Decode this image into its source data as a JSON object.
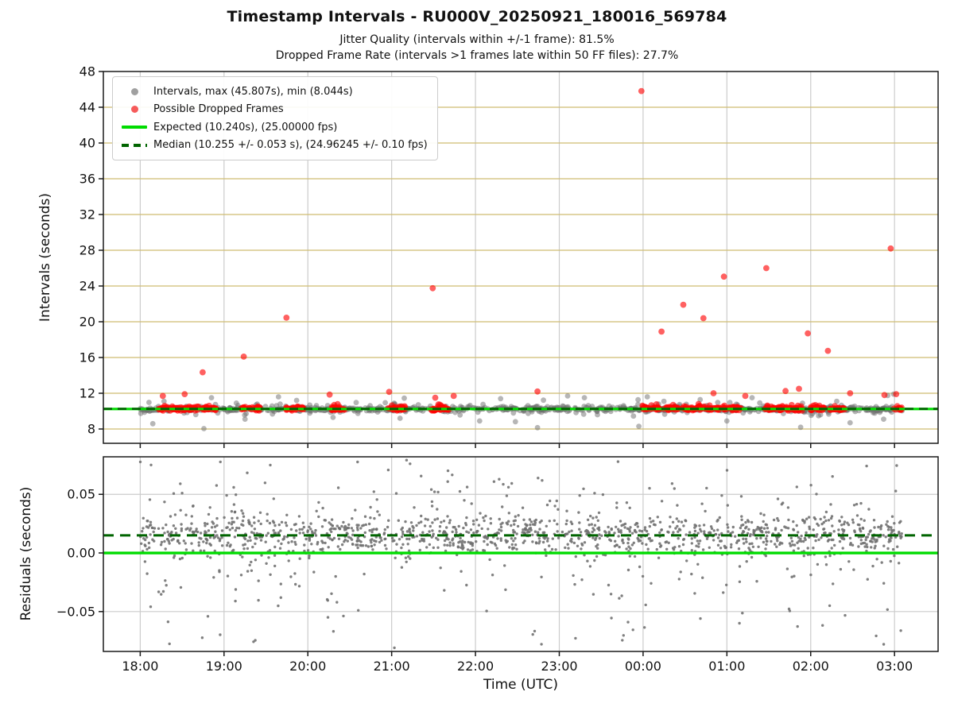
{
  "title": "Timestamp Intervals - RU000V_20250921_180016_569784",
  "subtitle1": "Jitter Quality (intervals within +/-1 frame): 81.5%",
  "subtitle2": "Dropped Frame Rate (intervals >1 frames late within 50 FF files): 27.7%",
  "stats": {
    "jitter_quality_pct": "81.5%",
    "dropped_frame_rate_pct": "27.7%",
    "ff_files": 50,
    "max_interval_s": 45.807,
    "min_interval_s": 8.044,
    "expected_interval_s": 10.24,
    "expected_fps": "25.00000",
    "median_interval_s": 10.255,
    "median_interval_err_s": 0.053,
    "median_fps": "24.96245",
    "median_fps_err": "0.10"
  },
  "legend": {
    "items": [
      {
        "label": "Intervals, max (45.807s), min (8.044s)",
        "marker": "gray-dot"
      },
      {
        "label": "Possible Dropped Frames",
        "marker": "red-dot"
      },
      {
        "label": "Expected (10.240s), (25.00000 fps)",
        "marker": "solid-line"
      },
      {
        "label": "Median (10.255 +/- 0.053 s), (24.96245 +/- 0.10 fps)",
        "marker": "dashed-line"
      }
    ]
  },
  "colors": {
    "gray_marker": "rgba(110,110,110,0.5)",
    "red_marker": "rgba(255,0,0,0.62)",
    "residual_marker": "rgba(110,110,110,0.88)",
    "expected_line": "#00dc00",
    "median_line": "#006400",
    "grid_tan": "#cfbc72",
    "grid_gray": "#cccccc",
    "frame": "#1a1a1a",
    "tick_text": "#111111"
  },
  "chart_data": {
    "type": "scatter",
    "x": {
      "label": "Time (UTC)",
      "xlim": [
        17.56,
        27.52
      ],
      "tick_hours": [
        18,
        19,
        20,
        21,
        22,
        23,
        24,
        25,
        26,
        27
      ],
      "tick_labels": [
        "18:00",
        "19:00",
        "20:00",
        "21:00",
        "22:00",
        "23:00",
        "00:00",
        "01:00",
        "02:00",
        "03:00"
      ],
      "data_range": [
        18.0,
        27.09
      ]
    },
    "panels": [
      {
        "name": "intervals",
        "ylabel": "Intervals (seconds)",
        "ylim": [
          6.4,
          48.0
        ],
        "ytick_values": [
          8,
          12,
          16,
          20,
          24,
          28,
          32,
          36,
          40,
          44,
          48
        ],
        "ytick_labels": [
          "8",
          "12",
          "16",
          "20",
          "24",
          "28",
          "32",
          "36",
          "40",
          "44",
          "48"
        ],
        "grid_values": [
          8,
          12,
          16,
          20,
          24,
          28,
          32,
          36,
          40,
          44
        ],
        "expected_line_y": 10.24,
        "median_line_y": 10.255,
        "gray_band": {
          "t_range": [
            18.0,
            27.09
          ],
          "center": 10.25,
          "count": 950
        },
        "gray_stray_points": [
          [
            18.76,
            8.044
          ],
          [
            18.15,
            8.6
          ],
          [
            19.25,
            9.1
          ],
          [
            20.3,
            9.3
          ],
          [
            21.1,
            9.2
          ],
          [
            22.05,
            8.9
          ],
          [
            22.74,
            8.15
          ],
          [
            23.95,
            8.3
          ],
          [
            25.0,
            8.9
          ],
          [
            25.88,
            8.2
          ],
          [
            26.47,
            8.7
          ],
          [
            26.87,
            9.1
          ],
          [
            18.85,
            11.5
          ],
          [
            19.65,
            11.6
          ],
          [
            21.15,
            11.45
          ],
          [
            22.3,
            11.4
          ],
          [
            23.1,
            11.7
          ],
          [
            23.3,
            11.5
          ],
          [
            24.05,
            11.6
          ],
          [
            25.3,
            11.5
          ],
          [
            26.92,
            11.75
          ],
          [
            26.99,
            11.9
          ]
        ],
        "red_outliers": [
          [
            23.98,
            45.81
          ],
          [
            18.745,
            14.35
          ],
          [
            19.235,
            16.1
          ],
          [
            19.745,
            20.45
          ],
          [
            21.49,
            23.75
          ],
          [
            24.22,
            18.9
          ],
          [
            24.48,
            21.9
          ],
          [
            24.72,
            20.4
          ],
          [
            24.965,
            25.05
          ],
          [
            25.47,
            26.0
          ],
          [
            25.965,
            18.7
          ],
          [
            26.205,
            16.75
          ],
          [
            26.955,
            28.2
          ]
        ],
        "red_near_band_points": [
          [
            18.27,
            11.7
          ],
          [
            18.53,
            11.9
          ],
          [
            20.26,
            11.85
          ],
          [
            20.97,
            12.15
          ],
          [
            21.52,
            11.5
          ],
          [
            21.74,
            11.7
          ],
          [
            22.74,
            12.2
          ],
          [
            24.84,
            12.0
          ],
          [
            25.22,
            11.7
          ],
          [
            25.7,
            12.25
          ],
          [
            25.86,
            12.5
          ],
          [
            26.47,
            12.0
          ],
          [
            26.88,
            11.8
          ],
          [
            27.02,
            11.9
          ]
        ],
        "red_band_clusters": [
          [
            18.22,
            18.47
          ],
          [
            18.48,
            18.7
          ],
          [
            18.73,
            18.92
          ],
          [
            19.2,
            19.43
          ],
          [
            19.74,
            19.96
          ],
          [
            20.27,
            20.44
          ],
          [
            20.95,
            21.17
          ],
          [
            21.47,
            21.69
          ],
          [
            23.99,
            24.2
          ],
          [
            24.23,
            24.42
          ],
          [
            24.46,
            24.69
          ],
          [
            24.71,
            24.91
          ],
          [
            24.95,
            25.17
          ],
          [
            25.45,
            25.67
          ],
          [
            25.7,
            25.92
          ],
          [
            25.98,
            26.16
          ],
          [
            26.21,
            26.41
          ],
          [
            26.99,
            27.09
          ]
        ]
      },
      {
        "name": "residuals",
        "ylabel": "Residuals (seconds)",
        "ylim": [
          -0.084,
          0.082
        ],
        "ytick_values": [
          -0.05,
          0.0,
          0.05
        ],
        "ytick_labels": [
          "−0.05",
          "0.00",
          "0.05"
        ],
        "grid_values": [
          -0.05,
          0.05
        ],
        "expected_line_y": 0.0,
        "median_line_y": 0.015,
        "scatter": {
          "t_range": [
            18.0,
            27.09
          ],
          "median": 0.015,
          "count": 1500
        }
      }
    ]
  }
}
